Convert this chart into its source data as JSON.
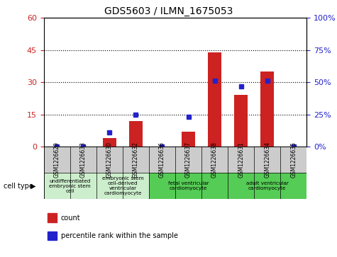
{
  "title": "GDS5603 / ILMN_1675053",
  "samples": [
    "GSM1226629",
    "GSM1226633",
    "GSM1226630",
    "GSM1226632",
    "GSM1226636",
    "GSM1226637",
    "GSM1226638",
    "GSM1226631",
    "GSM1226634",
    "GSM1226635"
  ],
  "counts": [
    0,
    0,
    4,
    12,
    0,
    7,
    44,
    24,
    35,
    0
  ],
  "percentiles": [
    0,
    0,
    11,
    25,
    0,
    23,
    51,
    47,
    51,
    0
  ],
  "ylim_left": [
    0,
    60
  ],
  "ylim_right": [
    0,
    100
  ],
  "yticks_left": [
    0,
    15,
    30,
    45,
    60
  ],
  "yticks_right": [
    0,
    25,
    50,
    75,
    100
  ],
  "bar_color": "#cc2222",
  "dot_color": "#2222cc",
  "cell_groups": [
    {
      "label": "undifferentiated\nembryonic stem\ncell",
      "indices": [
        0,
        1
      ],
      "color": "#cceecc"
    },
    {
      "label": "embryonic stem\ncell-derived\nventricular\ncardiomyocyte",
      "indices": [
        2,
        3
      ],
      "color": "#cceecc"
    },
    {
      "label": "fetal ventricular\ncardiomyocyte",
      "indices": [
        4,
        5,
        6
      ],
      "color": "#55cc55"
    },
    {
      "label": "adult ventricular\ncardiomyocyte",
      "indices": [
        7,
        8,
        9
      ],
      "color": "#55cc55"
    }
  ],
  "sample_box_color": "#cccccc",
  "legend_count_label": "count",
  "legend_pct_label": "percentile rank within the sample",
  "cell_type_label": "cell type"
}
